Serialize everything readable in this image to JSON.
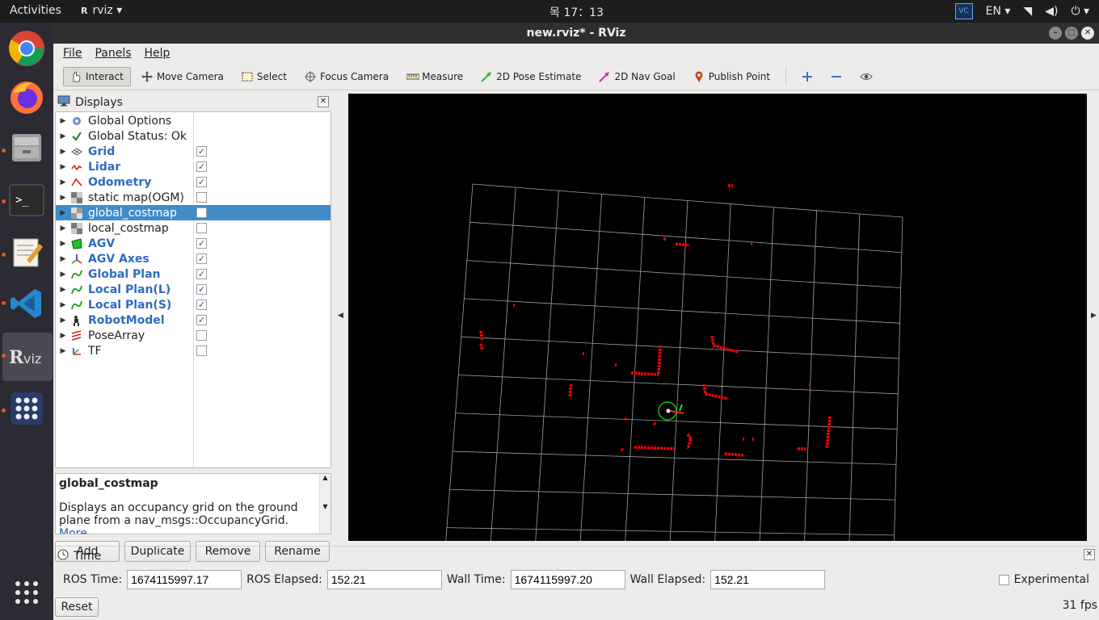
{
  "topbar": {
    "activities": "Activities",
    "app_name": "rviz",
    "clock": "목 17：13",
    "language": "EN"
  },
  "dock": {
    "apps": [
      "chrome-icon",
      "firefox-icon",
      "files-icon",
      "terminal-icon",
      "text-editor-icon",
      "vscode-icon",
      "rviz-icon",
      "apps-icon",
      "show-applications-icon"
    ]
  },
  "window": {
    "title": "new.rviz* - RViz"
  },
  "menu": {
    "file": "File",
    "panels": "Panels",
    "help": "Help"
  },
  "toolbar": {
    "interact": "Interact",
    "move_camera": "Move Camera",
    "select": "Select",
    "focus_camera": "Focus Camera",
    "measure": "Measure",
    "pose_estimate": "2D Pose Estimate",
    "nav_goal": "2D Nav Goal",
    "publish_point": "Publish Point"
  },
  "displays": {
    "title": "Displays",
    "items": [
      {
        "label": "Global Options",
        "checked": null
      },
      {
        "label": "Global Status: Ok",
        "checked": null
      },
      {
        "label": "Grid",
        "checked": true
      },
      {
        "label": "Lidar",
        "checked": true
      },
      {
        "label": "Odometry",
        "checked": true
      },
      {
        "label": "static map(OGM)",
        "checked": false
      },
      {
        "label": "global_costmap",
        "checked": false
      },
      {
        "label": "local_costmap",
        "checked": false
      },
      {
        "label": "AGV",
        "checked": true
      },
      {
        "label": "AGV Axes",
        "checked": true
      },
      {
        "label": "Global Plan",
        "checked": true
      },
      {
        "label": "Local Plan(L)",
        "checked": true
      },
      {
        "label": "Local Plan(S)",
        "checked": true
      },
      {
        "label": "RobotModel",
        "checked": true
      },
      {
        "label": "PoseArray",
        "checked": false
      },
      {
        "label": "TF",
        "checked": false
      }
    ],
    "selected_index": 6
  },
  "description": {
    "title": "global_costmap",
    "text": "Displays an occupancy grid on the ground plane from a nav_msgs::OccupancyGrid.",
    "link": "More"
  },
  "buttons": {
    "add": "Add",
    "duplicate": "Duplicate",
    "remove": "Remove",
    "rename": "Rename"
  },
  "time": {
    "title": "Time",
    "ros_time_label": "ROS Time:",
    "ros_time": "1674115997.17",
    "ros_elapsed_label": "ROS Elapsed:",
    "ros_elapsed": "152.21",
    "wall_time_label": "Wall Time:",
    "wall_time": "1674115997.20",
    "wall_elapsed_label": "Wall Elapsed:",
    "wall_elapsed": "152.21",
    "experimental": "Experimental",
    "reset": "Reset",
    "fps": "31 fps"
  },
  "colors": {
    "accent_selection": "#3e8cc9",
    "lidar_points": "#ff0000",
    "grid_lines": "#a0a0a0",
    "viewport_bg": "#000000"
  }
}
